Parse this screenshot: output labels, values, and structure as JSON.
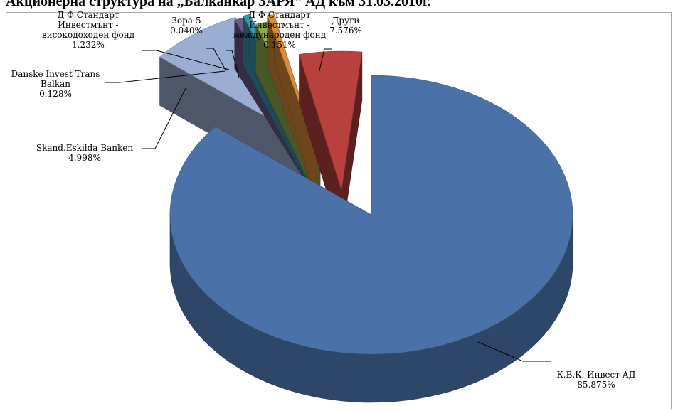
{
  "title": "Акционерна структура на „Балканкар ЗАРЯ“ АД към 31.03.2010г.",
  "chart_data": {
    "type": "pie",
    "style": "3d-exploded",
    "slices": [
      {
        "label": [
          "К.В.К. Инвест АД"
        ],
        "value": 85.875,
        "value_label": "85.875%",
        "color": "#4a72a8"
      },
      {
        "label": [
          "Други"
        ],
        "value": 7.576,
        "value_label": "7.576%",
        "color": "#9aaed2"
      },
      {
        "label": [
          "Д Ф Стандарт",
          "Инвестмънт -",
          "международен фонд"
        ],
        "value": 0.151,
        "value_label": "0.151%",
        "color": "#6a5a8c"
      },
      {
        "label": [
          "Зора-5"
        ],
        "value": 0.04,
        "value_label": "0.040%",
        "color": "#3b95ad"
      },
      {
        "label": [
          "Д Ф Стандарт",
          "Инвестмънт -",
          "високодоходен фонд"
        ],
        "value": 1.232,
        "value_label": "1.232%",
        "color": "#8db04c"
      },
      {
        "label": [
          "Danske Invest Trans",
          "Balkan"
        ],
        "value": 0.128,
        "value_label": "0.128%",
        "color": "#d98b3c"
      },
      {
        "label": [
          "Skand.Eskilda Banken"
        ],
        "value": 4.998,
        "value_label": "4.998%",
        "color": "#b8413e"
      }
    ]
  }
}
